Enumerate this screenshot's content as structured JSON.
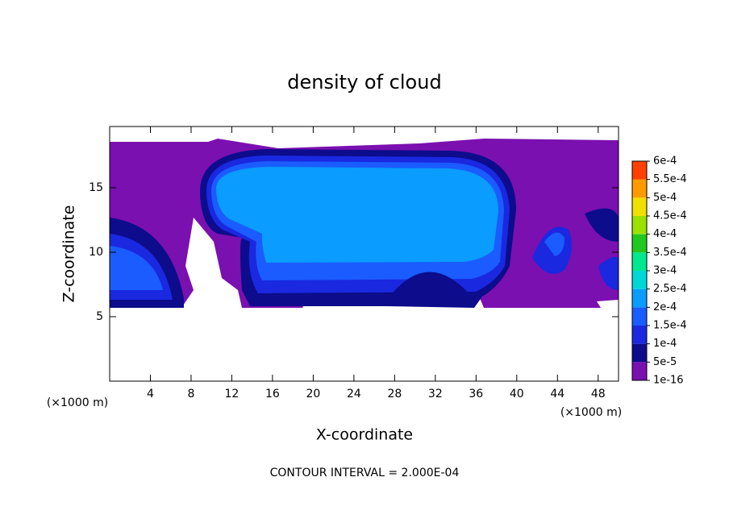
{
  "chart_data": {
    "type": "contour",
    "title": "density of cloud",
    "xlabel": "X-coordinate",
    "ylabel": "Z-coordinate",
    "x_unit": "(×1000 m)",
    "footnote": "CONTOUR INTERVAL = 2.000E-04",
    "xlim": [
      0,
      50
    ],
    "xticks": [
      4,
      8,
      12,
      16,
      20,
      24,
      28,
      32,
      36,
      40,
      44,
      48
    ],
    "ylim": [
      0,
      19.75
    ],
    "yticks": [
      5,
      10,
      15
    ],
    "levels": [
      {
        "value": 1e-16,
        "label": "1e-16"
      },
      {
        "value": 5e-05,
        "label": "5e-5"
      },
      {
        "value": 0.0001,
        "label": "1e-4"
      },
      {
        "value": 0.00015,
        "label": "1.5e-4"
      },
      {
        "value": 0.0002,
        "label": "2e-4"
      },
      {
        "value": 0.00025,
        "label": "2.5e-4"
      },
      {
        "value": 0.0003,
        "label": "3e-4"
      },
      {
        "value": 0.00035,
        "label": "3.5e-4"
      },
      {
        "value": 0.0004,
        "label": "4e-4"
      },
      {
        "value": 0.00045,
        "label": "4.5e-4"
      },
      {
        "value": 0.0005,
        "label": "5e-4"
      },
      {
        "value": 0.00055,
        "label": "5.5e-4"
      },
      {
        "value": 0.0006,
        "label": "6e-4"
      }
    ],
    "colors": [
      "#7a10b0",
      "#0c0c8c",
      "#1a28e0",
      "#1a5cff",
      "#0a9cff",
      "#00d8d8",
      "#00e890",
      "#20c820",
      "#9ae000",
      "#f0e000",
      "#ff9a00",
      "#ff4000",
      "#ff8080"
    ]
  }
}
